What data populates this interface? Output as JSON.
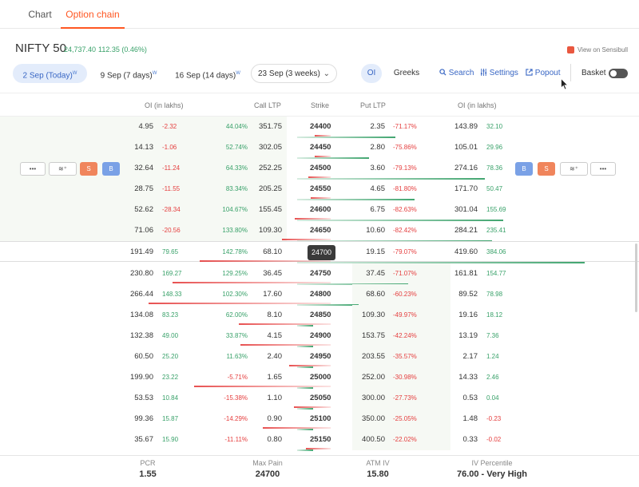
{
  "tabs": [
    {
      "label": "Chart"
    },
    {
      "label": "Option chain"
    }
  ],
  "header": {
    "title": "NIFTY 50",
    "ltp": "24,737.40",
    "change": "112.35 (0.46%)",
    "sensibull": "View on Sensibull"
  },
  "expiries": [
    {
      "label": "2 Sep (Today)",
      "sup": "W"
    },
    {
      "label": "9 Sep (7 days)",
      "sup": "W"
    },
    {
      "label": "16 Sep (14 days)",
      "sup": "W"
    },
    {
      "label": "23 Sep (3 weeks)"
    }
  ],
  "toolbar": {
    "oi": "OI",
    "greeks": "Greeks",
    "search": "Search",
    "settings": "Settings",
    "popout": "Popout",
    "basket": "Basket"
  },
  "columns": {
    "call_oi": "OI (in lakhs)",
    "call_ltp": "Call LTP",
    "strike": "Strike",
    "put_ltp": "Put LTP",
    "put_oi": "OI (in lakhs)"
  },
  "row_actions": {
    "more": "•••",
    "layers": "≋⁺",
    "sell": "S",
    "buy": "B"
  },
  "rows": [
    {
      "call_oi": "4.95",
      "call_oi_chg": "-2.32",
      "call_ltp_chg": "44.04%",
      "call_ltp": "351.75",
      "strike": "24400",
      "put_ltp": "2.35",
      "put_ltp_chg": "-71.17%",
      "put_oi": "143.89",
      "put_oi_chg": "32.10"
    },
    {
      "call_oi": "14.13",
      "call_oi_chg": "-1.06",
      "call_ltp_chg": "52.74%",
      "call_ltp": "302.05",
      "strike": "24450",
      "put_ltp": "2.80",
      "put_ltp_chg": "-75.86%",
      "put_oi": "105.01",
      "put_oi_chg": "29.96"
    },
    {
      "call_oi": "32.64",
      "call_oi_chg": "-11.24",
      "call_ltp_chg": "64.33%",
      "call_ltp": "252.25",
      "strike": "24500",
      "put_ltp": "3.60",
      "put_ltp_chg": "-79.13%",
      "put_oi": "274.16",
      "put_oi_chg": "78.36"
    },
    {
      "call_oi": "28.75",
      "call_oi_chg": "-11.55",
      "call_ltp_chg": "83.34%",
      "call_ltp": "205.25",
      "strike": "24550",
      "put_ltp": "4.65",
      "put_ltp_chg": "-81.80%",
      "put_oi": "171.70",
      "put_oi_chg": "50.47"
    },
    {
      "call_oi": "52.62",
      "call_oi_chg": "-28.34",
      "call_ltp_chg": "104.67%",
      "call_ltp": "155.45",
      "strike": "24600",
      "put_ltp": "6.75",
      "put_ltp_chg": "-82.63%",
      "put_oi": "301.04",
      "put_oi_chg": "155.69"
    },
    {
      "call_oi": "71.06",
      "call_oi_chg": "-20.56",
      "call_ltp_chg": "133.80%",
      "call_ltp": "109.30",
      "strike": "24650",
      "put_ltp": "10.60",
      "put_ltp_chg": "-82.42%",
      "put_oi": "284.21",
      "put_oi_chg": "235.41"
    },
    {
      "call_oi": "191.49",
      "call_oi_chg": "79.65",
      "call_ltp_chg": "142.78%",
      "call_ltp": "68.10",
      "strike": "24700",
      "put_ltp": "19.15",
      "put_ltp_chg": "-79.07%",
      "put_oi": "419.60",
      "put_oi_chg": "384.06"
    },
    {
      "call_oi": "230.80",
      "call_oi_chg": "169.27",
      "call_ltp_chg": "129.25%",
      "call_ltp": "36.45",
      "strike": "24750",
      "put_ltp": "37.45",
      "put_ltp_chg": "-71.07%",
      "put_oi": "161.81",
      "put_oi_chg": "154.77"
    },
    {
      "call_oi": "266.44",
      "call_oi_chg": "148.33",
      "call_ltp_chg": "102.30%",
      "call_ltp": "17.60",
      "strike": "24800",
      "put_ltp": "68.60",
      "put_ltp_chg": "-60.23%",
      "put_oi": "89.52",
      "put_oi_chg": "78.98"
    },
    {
      "call_oi": "134.08",
      "call_oi_chg": "83.23",
      "call_ltp_chg": "62.00%",
      "call_ltp": "8.10",
      "strike": "24850",
      "put_ltp": "109.30",
      "put_ltp_chg": "-49.97%",
      "put_oi": "19.16",
      "put_oi_chg": "18.12"
    },
    {
      "call_oi": "132.38",
      "call_oi_chg": "49.00",
      "call_ltp_chg": "33.87%",
      "call_ltp": "4.15",
      "strike": "24900",
      "put_ltp": "153.75",
      "put_ltp_chg": "-42.24%",
      "put_oi": "13.19",
      "put_oi_chg": "7.36"
    },
    {
      "call_oi": "60.50",
      "call_oi_chg": "25.20",
      "call_ltp_chg": "11.63%",
      "call_ltp": "2.40",
      "strike": "24950",
      "put_ltp": "203.55",
      "put_ltp_chg": "-35.57%",
      "put_oi": "2.17",
      "put_oi_chg": "1.24"
    },
    {
      "call_oi": "199.90",
      "call_oi_chg": "23.22",
      "call_ltp_chg": "-5.71%",
      "call_ltp": "1.65",
      "strike": "25000",
      "put_ltp": "252.00",
      "put_ltp_chg": "-30.98%",
      "put_oi": "14.33",
      "put_oi_chg": "2.46"
    },
    {
      "call_oi": "53.53",
      "call_oi_chg": "10.84",
      "call_ltp_chg": "-15.38%",
      "call_ltp": "1.10",
      "strike": "25050",
      "put_ltp": "300.00",
      "put_ltp_chg": "-27.73%",
      "put_oi": "0.53",
      "put_oi_chg": "0.04"
    },
    {
      "call_oi": "99.36",
      "call_oi_chg": "15.87",
      "call_ltp_chg": "-14.29%",
      "call_ltp": "0.90",
      "strike": "25100",
      "put_ltp": "350.00",
      "put_ltp_chg": "-25.05%",
      "put_oi": "1.48",
      "put_oi_chg": "-0.23"
    },
    {
      "call_oi": "35.67",
      "call_oi_chg": "15.90",
      "call_ltp_chg": "-11.11%",
      "call_ltp": "0.80",
      "strike": "25150",
      "put_ltp": "400.50",
      "put_ltp_chg": "-22.02%",
      "put_oi": "0.33",
      "put_oi_chg": "-0.02"
    }
  ],
  "footer": {
    "pcr_label": "PCR",
    "pcr": "1.55",
    "maxpain_label": "Max Pain",
    "maxpain": "24700",
    "atmiv_label": "ATM IV",
    "atmiv": "15.80",
    "ivp_label": "IV Percentile",
    "ivp": "76.00 - Very High"
  },
  "colors": {
    "accent": "#ff5722",
    "positive": "#38a169",
    "negative": "#e53e3e",
    "link": "#3866c4"
  }
}
